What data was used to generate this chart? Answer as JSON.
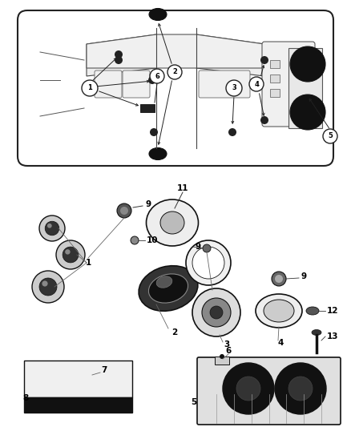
{
  "bg_color": "#ffffff",
  "fig_width": 4.38,
  "fig_height": 5.33,
  "dpi": 100,
  "car": {
    "body_color": "#f8f8f8",
    "line_color": "#333333"
  },
  "parts": {
    "dark": "#111111",
    "mid": "#888888",
    "light": "#dddddd",
    "white": "#f5f5f5"
  }
}
